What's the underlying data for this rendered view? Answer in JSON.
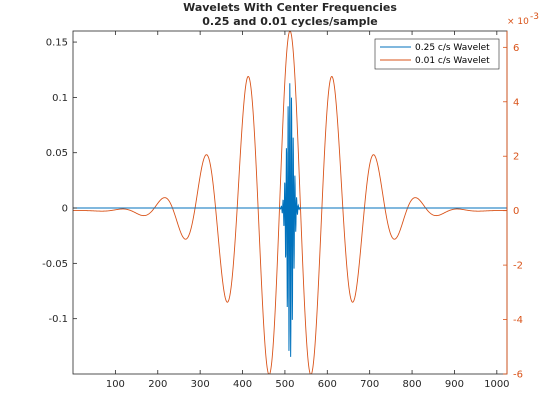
{
  "chart_data": {
    "type": "line",
    "title_line1": "Wavelets With Center Frequencies",
    "title_line2": "0.25 and 0.01 cycles/sample",
    "xlabel": "",
    "ylabel_left": "",
    "ylabel_right": "",
    "xlim": [
      0,
      1024
    ],
    "ylim_left": [
      -0.15,
      0.16
    ],
    "ylim_right": [
      -0.006,
      0.0066
    ],
    "right_axis_multiplier": "× 10",
    "right_axis_exponent": "-3",
    "x_ticks": [
      100,
      200,
      300,
      400,
      500,
      600,
      700,
      800,
      900,
      1000
    ],
    "x_tick_labels": [
      "100",
      "200",
      "300",
      "400",
      "500",
      "600",
      "700",
      "800",
      "900",
      "1000"
    ],
    "y_ticks_left": [
      -0.1,
      -0.05,
      0,
      0.05,
      0.1,
      0.15
    ],
    "y_tick_labels_left": [
      "-0.1",
      "-0.05",
      "0",
      "0.05",
      "0.1",
      "0.15"
    ],
    "y_ticks_right": [
      -6,
      -4,
      -2,
      0,
      2,
      4,
      6
    ],
    "y_tick_labels_right": [
      "-6",
      "-4",
      "-2",
      "0",
      "2",
      "4",
      "6"
    ],
    "legend_placement": "top-right",
    "grid": false,
    "series": [
      {
        "name": "0.25 c/s Wavelet",
        "axis": "left",
        "color": "#0072BD",
        "center": 512,
        "frequency_cycles_per_sample": 0.25,
        "peak": 0.115,
        "trough": -0.14
      },
      {
        "name": "0.01 c/s Wavelet",
        "axis": "right",
        "color": "#D95319",
        "center": 512,
        "frequency_cycles_per_sample": 0.01,
        "peak_x1e3": 6.6,
        "trough_x1e3": -6.0
      }
    ]
  }
}
